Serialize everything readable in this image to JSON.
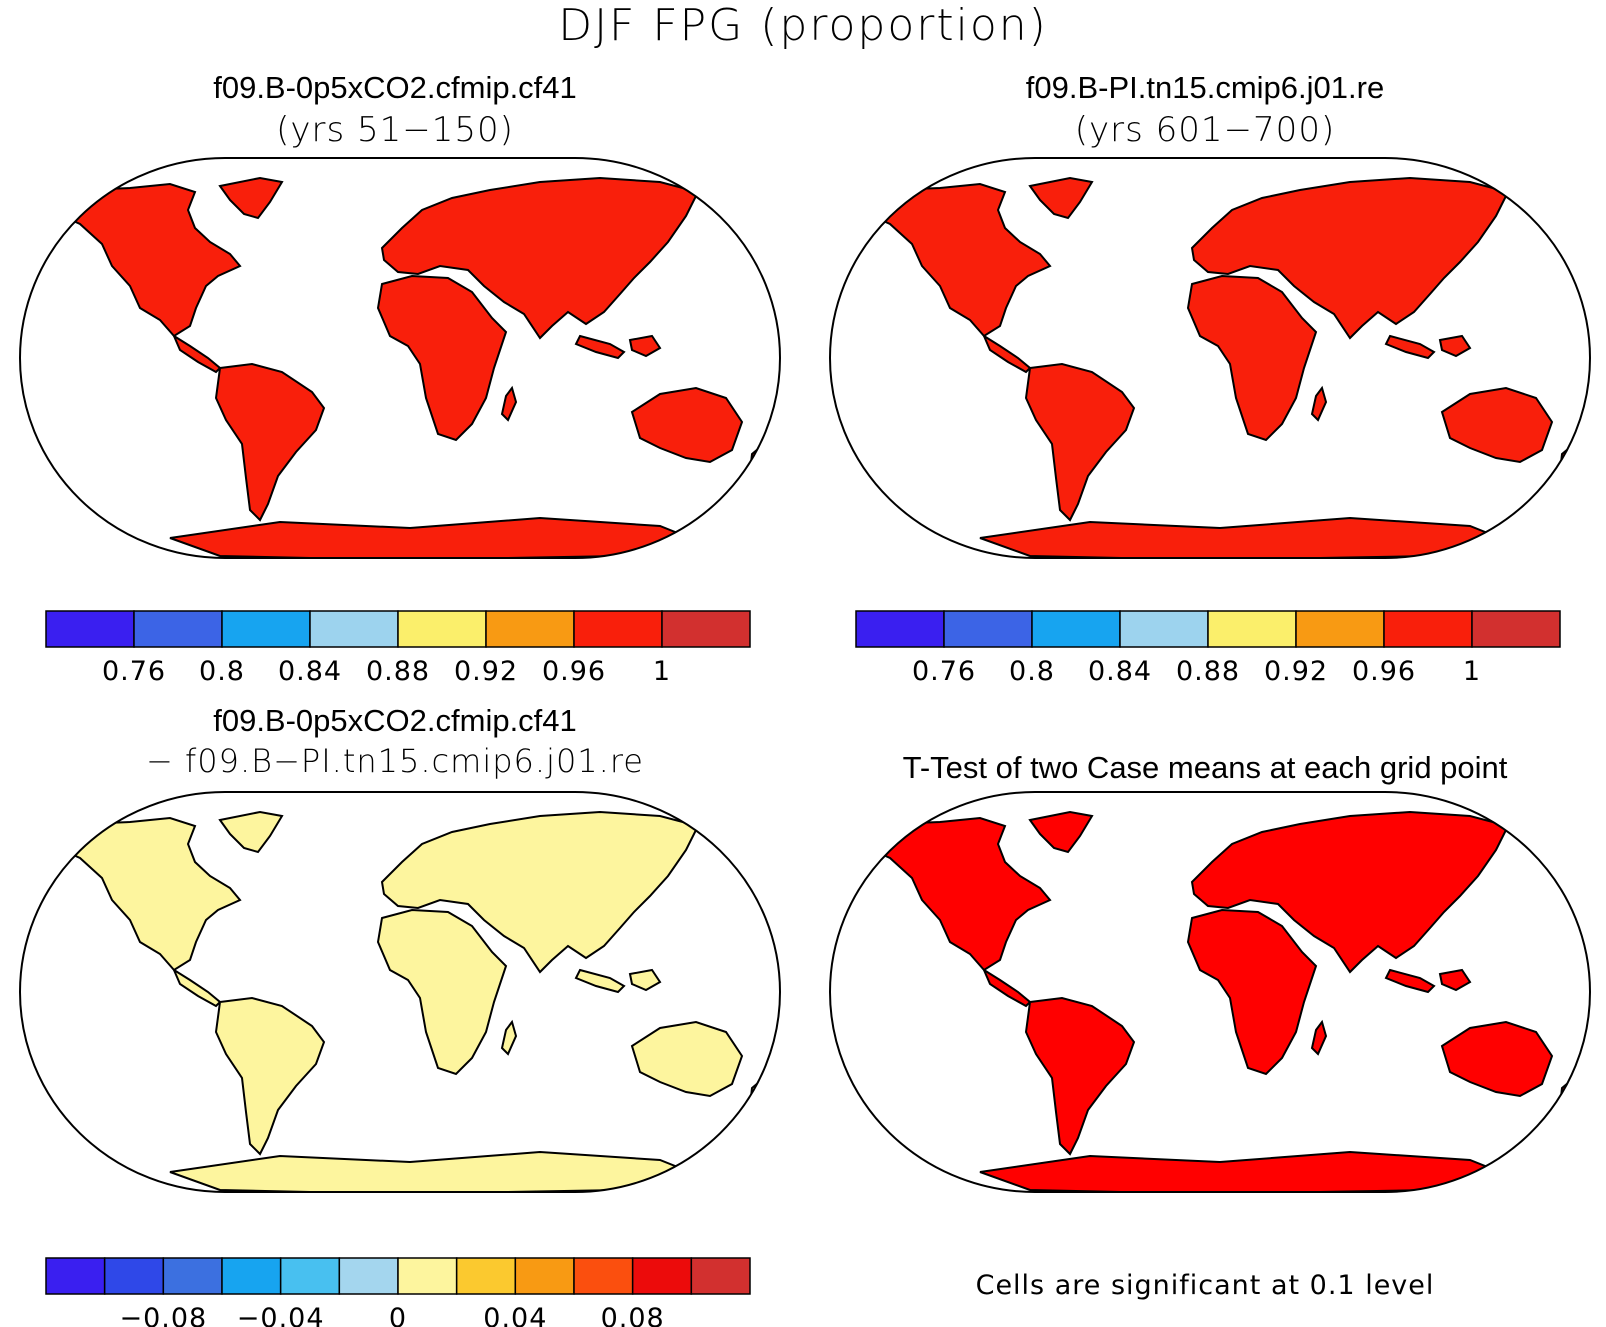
{
  "title": "DJF FPG (proportion)",
  "panels": [
    {
      "case": "f09.B-0p5xCO2.cfmip.cf41",
      "subtitle": "(yrs 51−150)"
    },
    {
      "case": "f09.B-PI.tn15.cmip6.j01.re",
      "subtitle": "(yrs 601−700)"
    },
    {
      "case": "f09.B-0p5xCO2.cfmip.cf41",
      "subtitle": "− f09.B−PI.tn15.cmip6.j01.re"
    },
    {
      "case": "T-Test of two Case means at each grid point",
      "subtitle": ""
    }
  ],
  "significance_note": "Cells are significant at 0.1 level",
  "colorbar_abs": {
    "colors": [
      "#3a1ff0",
      "#3c64e6",
      "#17a4f0",
      "#9dd3ee",
      "#fbef6b",
      "#f89a13",
      "#f91f0b",
      "#d2302f"
    ],
    "labels": [
      "0.76",
      "0.8",
      "0.84",
      "0.88",
      "0.92",
      "0.96",
      "1"
    ]
  },
  "colorbar_diff": {
    "colors": [
      "#3a1ff0",
      "#2f48e8",
      "#3c70e0",
      "#17a4f0",
      "#48c0f0",
      "#a4d6ee",
      "#fdf59e",
      "#fbc92f",
      "#f89a13",
      "#fb4f0e",
      "#ec0b0b",
      "#d2302f"
    ],
    "labels": [
      "−0.08",
      "−0.04",
      "0",
      "0.04",
      "0.08"
    ]
  },
  "map_colors": {
    "abs": "#f91f0b",
    "diff": "#fdf59e",
    "ttest": "#ff0000"
  }
}
